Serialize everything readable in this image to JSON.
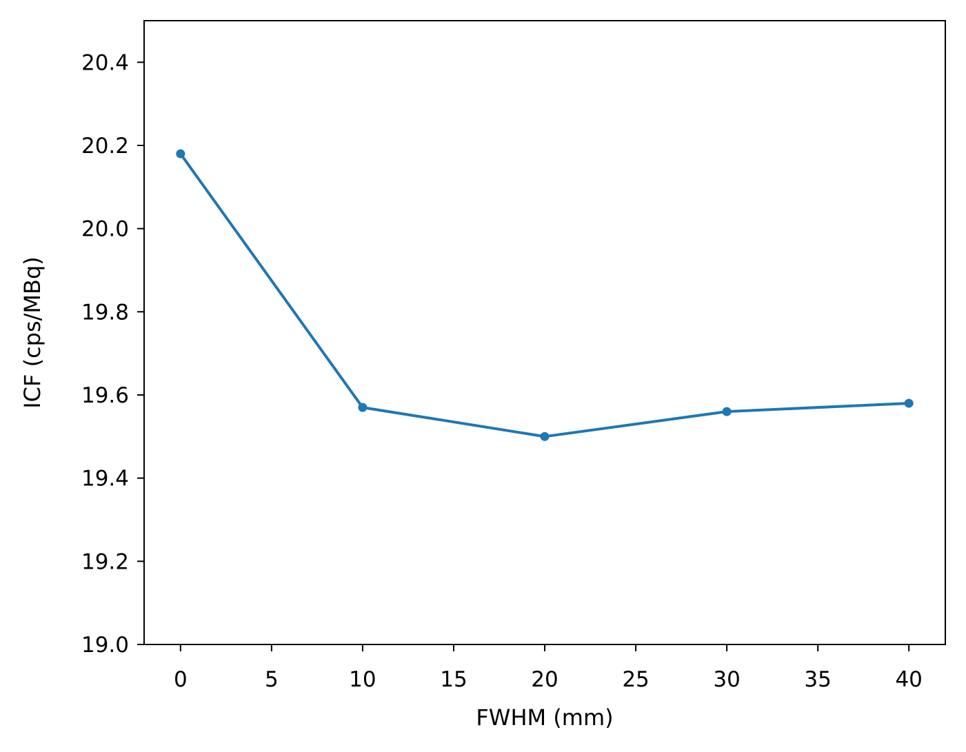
{
  "chart_data": {
    "type": "line",
    "title": "",
    "xlabel": "FWHM (mm)",
    "ylabel": "ICF (cps/MBq)",
    "xlim": [
      -2,
      42
    ],
    "ylim": [
      19.0,
      20.5
    ],
    "xticks": [
      0,
      5,
      10,
      15,
      20,
      25,
      30,
      35,
      40
    ],
    "yticks": [
      19.0,
      19.2,
      19.4,
      19.6,
      19.8,
      20.0,
      20.2,
      20.4
    ],
    "grid": false,
    "legend": "none",
    "series": [
      {
        "color": "#1f77b4",
        "marker": "circle",
        "x": [
          0,
          10,
          20,
          30,
          40
        ],
        "y": [
          20.18,
          19.57,
          19.5,
          19.56,
          19.58
        ]
      }
    ]
  }
}
